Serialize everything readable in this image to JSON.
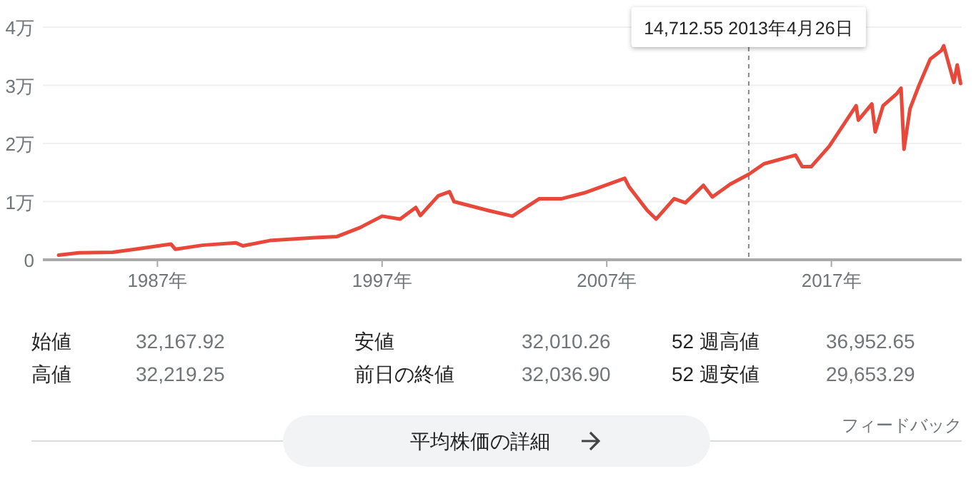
{
  "chart_data": {
    "type": "line",
    "x": [
      1982.6,
      1983.5,
      1985,
      1986,
      1987.6,
      1987.8,
      1989,
      1990.5,
      1990.8,
      1992,
      1994,
      1995,
      1996,
      1997,
      1997.8,
      1998.5,
      1998.7,
      1999.5,
      2000,
      2000.2,
      2001.7,
      2002.8,
      2004,
      2005,
      2006,
      2007.8,
      2008,
      2008.8,
      2009.2,
      2010,
      2010.5,
      2011.3,
      2011.7,
      2012.5,
      2013.32,
      2014,
      2015.4,
      2015.7,
      2016.1,
      2016.9,
      2018.1,
      2018.2,
      2018.8,
      2018.95,
      2019.3,
      2019.9,
      2020.1,
      2020.23,
      2020.5,
      2020.9,
      2021.4,
      2021.9,
      2022.0,
      2022.45,
      2022.6,
      2022.75
    ],
    "series": [
      {
        "color": "#e8483a",
        "values": [
          0.08,
          0.12,
          0.13,
          0.18,
          0.27,
          0.18,
          0.25,
          0.29,
          0.24,
          0.33,
          0.38,
          0.4,
          0.55,
          0.75,
          0.7,
          0.9,
          0.76,
          1.1,
          1.17,
          1.0,
          0.85,
          0.75,
          1.05,
          1.05,
          1.15,
          1.4,
          1.25,
          0.85,
          0.7,
          1.05,
          0.98,
          1.28,
          1.08,
          1.3,
          1.47,
          1.65,
          1.8,
          1.6,
          1.6,
          1.95,
          2.65,
          2.4,
          2.68,
          2.2,
          2.65,
          2.85,
          2.95,
          1.9,
          2.6,
          3.0,
          3.45,
          3.6,
          3.68,
          3.05,
          3.35,
          3.03
        ]
      }
    ],
    "xlim": [
      1981.9,
      2022.8
    ],
    "ylim": [
      0,
      4
    ],
    "xticks": [
      {
        "value": 1987,
        "label": "1987年"
      },
      {
        "value": 1997,
        "label": "1997年"
      },
      {
        "value": 2007,
        "label": "2007年"
      },
      {
        "value": 2017,
        "label": "2017年"
      }
    ],
    "yticks": [
      0,
      {
        "value": 1,
        "label": "1万"
      },
      {
        "value": 2,
        "label": "2万"
      },
      {
        "value": 3,
        "label": "3万"
      },
      {
        "value": 4,
        "label": "4万"
      }
    ],
    "grid": "y",
    "ref_lines": [
      {
        "axis": "x",
        "value": 2013.32,
        "line_style": "dashed",
        "color": "#888888"
      }
    ],
    "annotations": [
      "14,712.55  2013年4月26日",
      "始値",
      "32,167.92",
      "安値",
      "32,010.26",
      "52 週高値",
      "36,952.65",
      "高値",
      "32,219.25",
      "前日の終値",
      "32,036.90",
      "52 週安値",
      "29,653.29",
      "フィードバック",
      "平均株価の詳細"
    ]
  }
}
